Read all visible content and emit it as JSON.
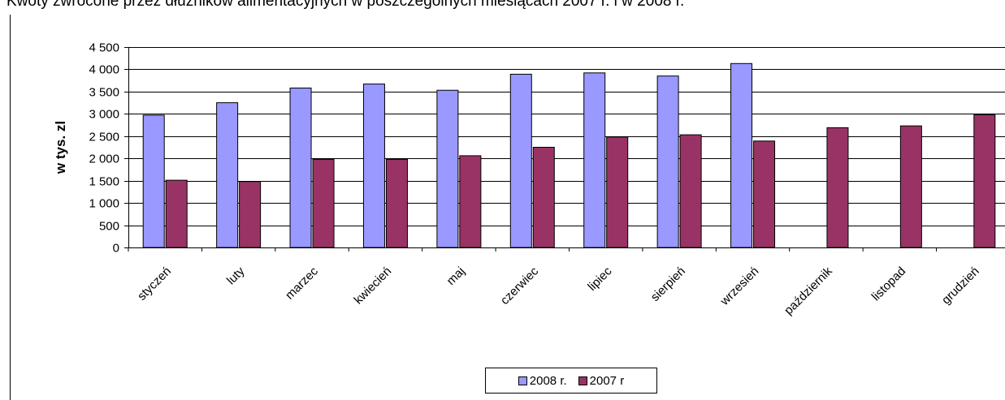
{
  "title": "Kwoty zwrócone przez dłużników alimentacyjnych w poszczególnych miesiącach 2007 r. i w 2008 r.",
  "chart_data": {
    "type": "bar",
    "title": "Kwoty zwrócone przez dłużników alimentacyjnych w poszczególnych miesiącach 2007 r. i w 2008 r.",
    "xlabel": "",
    "ylabel": "w  tys.  zl",
    "ylim": [
      0,
      4500
    ],
    "yticks": [
      0,
      500,
      1000,
      1500,
      2000,
      2500,
      3000,
      3500,
      4000,
      4500
    ],
    "ytick_labels": [
      "0",
      "500",
      "1 000",
      "1 500",
      "2 000",
      "2 500",
      "3 000",
      "3 500",
      "4 000",
      "4 500"
    ],
    "grid": true,
    "legend_position": "bottom",
    "categories": [
      "styczeń",
      "luty",
      "marzec",
      "kwiecień",
      "maj",
      "czerwiec",
      "lipiec",
      "sierpień",
      "wrzesień",
      "październik",
      "listopad",
      "grudzień"
    ],
    "series": [
      {
        "name": "2008 r.",
        "color": "#9999FF",
        "values": [
          2970,
          3250,
          3580,
          3670,
          3530,
          3890,
          3920,
          3850,
          4130,
          null,
          null,
          null
        ]
      },
      {
        "name": "2007 r",
        "color": "#993366",
        "values": [
          1510,
          1480,
          1980,
          1980,
          2060,
          2250,
          2480,
          2530,
          2390,
          2690,
          2730,
          2980
        ]
      }
    ]
  }
}
